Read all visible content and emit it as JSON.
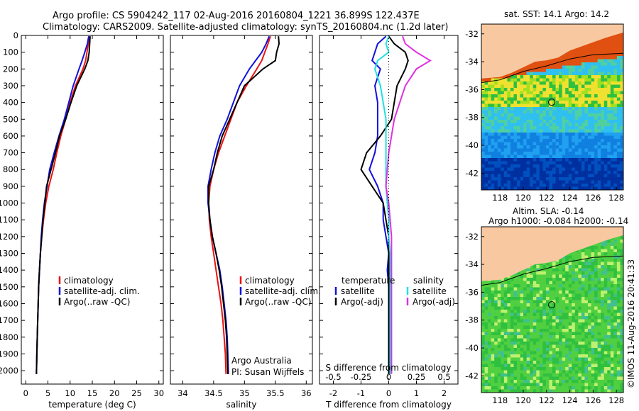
{
  "header": {
    "line1": "Argo profile: CS 5904242_117 02-Aug-2016 20160804_1221 36.899S 122.437E",
    "line2": "Climatology: CARS2009. Satellite-adjusted climatology: synTS_20160804.nc (1.2d later)"
  },
  "colors": {
    "climatology": "#ee1111",
    "satellite": "#1111dd",
    "argo": "#000000",
    "salinity_satellite": "#22e0e0",
    "salinity_argo": "#e030e0",
    "land": "#f8c8a0"
  },
  "chart_data": [
    {
      "type": "line",
      "id": "temperature",
      "xlabel": "temperature (deg C)",
      "xlim": [
        -1,
        31
      ],
      "ylim": [
        2080,
        0
      ],
      "xticks": [
        0,
        5,
        10,
        15,
        20,
        25,
        30
      ],
      "yticks": [
        0,
        100,
        200,
        300,
        400,
        500,
        600,
        700,
        800,
        900,
        1000,
        1100,
        1200,
        1300,
        1400,
        1500,
        1600,
        1700,
        1800,
        1900,
        2000
      ],
      "legend": [
        "climatology",
        "satellite-adj. clim.",
        "Argo(..raw -QC)"
      ],
      "series": [
        {
          "name": "climatology",
          "depth": [
            5,
            50,
            100,
            150,
            200,
            300,
            400,
            500,
            600,
            700,
            800,
            900,
            1000,
            1100,
            1200,
            1300,
            1400,
            1500,
            1600,
            1700,
            1800,
            1900,
            2020
          ],
          "values": [
            14.3,
            14.1,
            13.8,
            13.5,
            12.9,
            11.2,
            10.0,
            9.0,
            7.9,
            7.0,
            6.2,
            5.2,
            4.5,
            4.0,
            3.6,
            3.3,
            3.1,
            2.9,
            2.8,
            2.7,
            2.6,
            2.5,
            2.4
          ]
        },
        {
          "name": "satellite-adj. clim.",
          "depth": [
            5,
            50,
            100,
            150,
            200,
            300,
            400,
            500,
            600,
            700,
            800,
            900,
            1000,
            1100,
            1200,
            1300,
            1400,
            1500,
            1600,
            1700,
            1800,
            1900,
            2020
          ],
          "values": [
            14.2,
            13.9,
            13.3,
            12.7,
            12.0,
            10.7,
            9.7,
            8.7,
            7.5,
            6.4,
            5.4,
            4.8,
            4.2,
            3.8,
            3.5,
            3.3,
            3.1,
            2.9,
            2.8,
            2.7,
            2.6,
            2.5,
            2.4
          ]
        },
        {
          "name": "Argo(..raw -QC)",
          "depth": [
            5,
            50,
            100,
            150,
            200,
            300,
            400,
            500,
            600,
            700,
            800,
            900,
            1000,
            1100,
            1200,
            1300,
            1400,
            1500,
            1600,
            1700,
            1800,
            1900,
            2020
          ],
          "values": [
            14.5,
            14.4,
            14.3,
            14.0,
            13.3,
            11.5,
            10.2,
            9.0,
            7.6,
            6.7,
            5.7,
            4.7,
            4.3,
            3.9,
            3.6,
            3.3,
            3.1,
            2.9,
            2.8,
            2.7,
            2.6,
            2.5,
            2.4
          ]
        }
      ]
    },
    {
      "type": "line",
      "id": "salinity",
      "xlabel": "salinity",
      "xlim": [
        33.8,
        36.1
      ],
      "ylim": [
        2080,
        0
      ],
      "xticks": [
        34,
        34.5,
        35,
        35.5,
        36
      ],
      "legend": [
        "climatology",
        "satellite-adj. clim.",
        "Argo(..raw -QC)"
      ],
      "annotation": [
        "Argo Australia",
        "PI: Susan Wijffels"
      ],
      "series": [
        {
          "name": "climatology",
          "depth": [
            5,
            50,
            100,
            150,
            200,
            300,
            400,
            500,
            600,
            700,
            800,
            900,
            1000,
            1100,
            1200,
            1300,
            1400,
            1500,
            1600,
            1700,
            1800,
            1900,
            2020
          ],
          "values": [
            35.42,
            35.38,
            35.33,
            35.28,
            35.2,
            35.03,
            34.88,
            34.78,
            34.68,
            34.58,
            34.5,
            34.44,
            34.42,
            34.43,
            34.46,
            34.5,
            34.54,
            34.58,
            34.62,
            34.65,
            34.67,
            34.69,
            34.7
          ]
        },
        {
          "name": "satellite-adj. clim.",
          "depth": [
            5,
            50,
            100,
            150,
            200,
            300,
            400,
            500,
            600,
            700,
            800,
            900,
            1000,
            1100,
            1200,
            1300,
            1400,
            1500,
            1600,
            1700,
            1800,
            1900,
            2020
          ],
          "values": [
            35.4,
            35.35,
            35.28,
            35.18,
            35.08,
            34.92,
            34.82,
            34.72,
            34.6,
            34.52,
            34.46,
            34.41,
            34.41,
            34.44,
            34.48,
            34.54,
            34.6,
            34.64,
            34.67,
            34.7,
            34.72,
            34.73,
            34.74
          ]
        },
        {
          "name": "Argo(..raw -QC)",
          "depth": [
            5,
            50,
            100,
            150,
            200,
            250,
            300,
            400,
            500,
            600,
            700,
            800,
            900,
            1000,
            1100,
            1200,
            1300,
            1400,
            1500,
            1600,
            1700,
            1800,
            1900,
            2020
          ],
          "values": [
            35.55,
            35.56,
            35.52,
            35.5,
            35.3,
            35.15,
            35.0,
            34.88,
            34.76,
            34.64,
            34.56,
            34.5,
            34.42,
            34.42,
            34.44,
            34.48,
            34.54,
            34.59,
            34.63,
            34.66,
            34.69,
            34.71,
            34.72,
            34.73
          ]
        }
      ]
    },
    {
      "type": "line",
      "id": "difference",
      "xlabel": "T difference from climatology",
      "xlabel2": "S difference from climatology",
      "xlim": [
        -2.5,
        2.5
      ],
      "ylim": [
        2080,
        0
      ],
      "xticks": [
        -2,
        -1,
        0,
        1,
        2
      ],
      "xticks2": [
        "-0.5",
        "-0.25",
        "0",
        "0.25",
        "0.5"
      ],
      "xticks2_pos": [
        -2,
        -1,
        0,
        1,
        2
      ],
      "legend_title_left": "temperature",
      "legend_title_right": "salinity",
      "legend": [
        "satellite",
        "Argo(-adj)",
        "satellite",
        "Argo(-adj)"
      ],
      "series": [
        {
          "name": "temperature satellite",
          "depth": [
            5,
            50,
            100,
            150,
            200,
            300,
            400,
            500,
            600,
            700,
            800,
            900,
            1000,
            1100,
            1200,
            1300,
            1400,
            1500,
            1700,
            2020
          ],
          "values": [
            -0.1,
            -0.4,
            -0.5,
            -0.6,
            -0.3,
            -0.5,
            -0.4,
            -0.4,
            -0.4,
            -0.5,
            -0.7,
            -0.4,
            -0.2,
            -0.2,
            -0.1,
            0.0,
            -0.05,
            0.0,
            0.0,
            0.0
          ]
        },
        {
          "name": "temperature Argo(-adj)",
          "depth": [
            5,
            50,
            100,
            150,
            200,
            300,
            400,
            500,
            600,
            700,
            800,
            900,
            1000,
            1100,
            1200,
            1300,
            1400,
            1500,
            1700,
            2020
          ],
          "values": [
            0.0,
            0.2,
            0.6,
            0.7,
            0.6,
            0.3,
            0.2,
            0.1,
            -0.3,
            -0.8,
            -1.0,
            -0.6,
            -0.2,
            -0.1,
            0.0,
            0.0,
            0.0,
            0.0,
            0.0,
            0.0
          ]
        },
        {
          "name": "salinity satellite",
          "depth": [
            5,
            50,
            100,
            150,
            200,
            300,
            400,
            500,
            600,
            700,
            800,
            900,
            1000,
            1100,
            1200,
            1300,
            1400,
            1500,
            1700,
            2020
          ],
          "values": [
            0.0,
            -0.1,
            0.0,
            -0.4,
            -0.5,
            -0.3,
            -0.2,
            -0.1,
            -0.1,
            -0.1,
            -0.1,
            -0.1,
            -0.05,
            0.0,
            0.0,
            0.05,
            0.05,
            0.05,
            0.05,
            0.05
          ]
        },
        {
          "name": "salinity Argo(-adj)",
          "depth": [
            5,
            50,
            100,
            150,
            200,
            300,
            400,
            500,
            600,
            700,
            800,
            900,
            1000,
            1100,
            1200,
            1300,
            1400,
            1500,
            1700,
            2020
          ],
          "values": [
            0.5,
            0.6,
            1.0,
            1.5,
            1.0,
            0.6,
            0.4,
            0.2,
            0.1,
            0.0,
            -0.05,
            -0.1,
            0.0,
            0.05,
            0.1,
            0.1,
            0.1,
            0.1,
            0.1,
            0.1
          ]
        }
      ]
    },
    {
      "type": "heatmap",
      "id": "sst-map",
      "title": "sat. SST: 14.1  Argo: 14.2",
      "xticks": [
        118,
        120,
        122,
        124,
        126,
        128
      ],
      "yticks": [
        -32,
        -34,
        -36,
        -38,
        -40,
        -42
      ],
      "xlim": [
        116.4,
        128.6
      ],
      "ylim": [
        -43.2,
        -31.3
      ],
      "float_position": {
        "lon": 122.44,
        "lat": -36.9
      }
    },
    {
      "type": "heatmap",
      "id": "sla-map",
      "title1": "Altim. SLA: -0.14",
      "title2": "Argo h1000: -0.084  h2000: -0.14",
      "xticks": [
        118,
        120,
        122,
        124,
        126,
        128
      ],
      "yticks": [
        -32,
        -34,
        -36,
        -38,
        -40,
        -42
      ],
      "xlim": [
        116.4,
        128.6
      ],
      "ylim": [
        -43.2,
        -31.3
      ],
      "float_position": {
        "lon": 122.44,
        "lat": -36.9
      }
    }
  ],
  "footer": {
    "credit": "©IMOS 11-Aug-2016 20:41:33"
  }
}
